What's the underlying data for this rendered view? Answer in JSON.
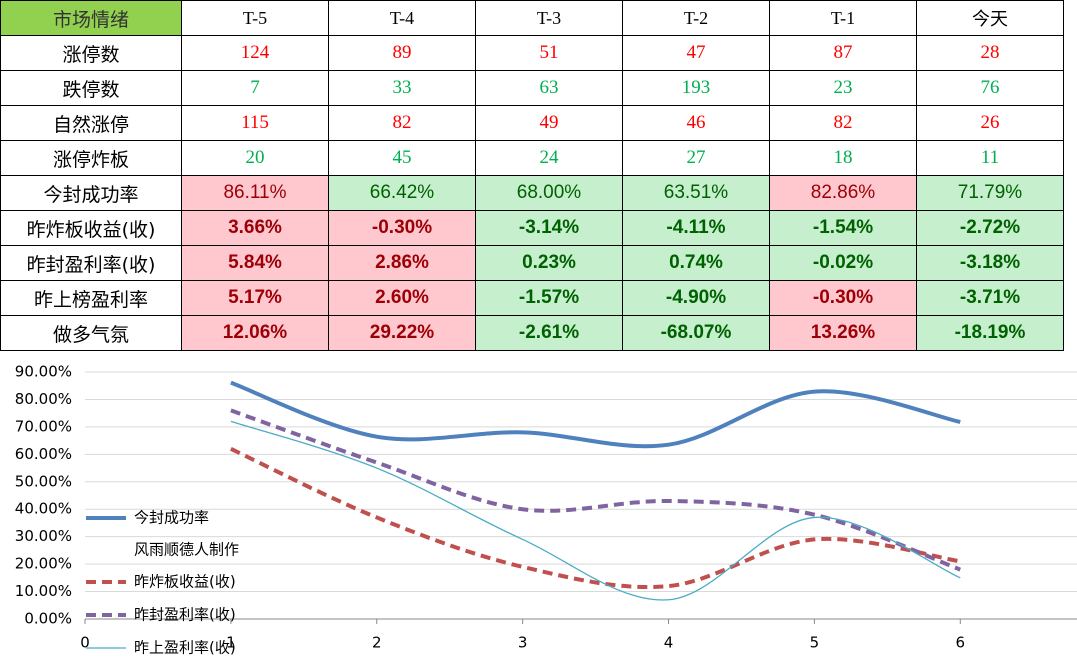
{
  "table": {
    "header": [
      "市场情绪",
      "T-5",
      "T-4",
      "T-3",
      "T-2",
      "T-1",
      "今天"
    ],
    "rows": [
      [
        "涨停数",
        "124",
        "89",
        "51",
        "47",
        "87",
        "28"
      ],
      [
        "跌停数",
        "7",
        "33",
        "63",
        "193",
        "23",
        "76"
      ],
      [
        "自然涨停",
        "115",
        "82",
        "49",
        "46",
        "82",
        "26"
      ],
      [
        "涨停炸板",
        "20",
        "45",
        "24",
        "27",
        "18",
        "11"
      ],
      [
        "今封成功率",
        "86.11%",
        "66.42%",
        "68.00%",
        "63.51%",
        "82.86%",
        "71.79%"
      ],
      [
        "昨炸板收益(收)",
        "3.66%",
        "-0.30%",
        "-3.14%",
        "-4.11%",
        "-1.54%",
        "-2.72%"
      ],
      [
        "昨封盈利率(收)",
        "5.84%",
        "2.86%",
        "0.23%",
        "0.74%",
        "-0.02%",
        "-3.18%"
      ],
      [
        "昨上榜盈利率",
        "5.17%",
        "2.60%",
        "-1.57%",
        "-4.90%",
        "-0.30%",
        "-3.71%"
      ],
      [
        "做多气氛",
        "12.06%",
        "29.22%",
        "-2.61%",
        "-68.07%",
        "13.26%",
        "-18.19%"
      ]
    ],
    "text_colors": [
      [
        "#ff0000",
        "#ff0000",
        "#ff0000",
        "#ff0000",
        "#ff0000",
        "#ff0000"
      ],
      [
        "#00b050",
        "#00b050",
        "#00b050",
        "#00b050",
        "#00b050",
        "#00b050"
      ],
      [
        "#ff0000",
        "#ff0000",
        "#ff0000",
        "#ff0000",
        "#ff0000",
        "#ff0000"
      ],
      [
        "#00b050",
        "#00b050",
        "#00b050",
        "#00b050",
        "#00b050",
        "#00b050"
      ],
      [
        "#9c0006",
        "#006100",
        "#006100",
        "#006100",
        "#9c0006",
        "#006100"
      ],
      [
        "#9c0006",
        "#9c0006",
        "#006100",
        "#006100",
        "#006100",
        "#006100"
      ],
      [
        "#9c0006",
        "#9c0006",
        "#006100",
        "#006100",
        "#006100",
        "#006100"
      ],
      [
        "#9c0006",
        "#9c0006",
        "#006100",
        "#006100",
        "#9c0006",
        "#006100"
      ],
      [
        "#9c0006",
        "#9c0006",
        "#006100",
        "#006100",
        "#9c0006",
        "#006100"
      ]
    ],
    "fills": [
      null,
      null,
      null,
      null,
      [
        "#ffc7ce",
        "#c6efce",
        "#c6efce",
        "#c6efce",
        "#ffc7ce",
        "#c6efce"
      ],
      [
        "#ffc7ce",
        "#ffc7ce",
        "#c6efce",
        "#c6efce",
        "#c6efce",
        "#c6efce"
      ],
      [
        "#ffc7ce",
        "#ffc7ce",
        "#c6efce",
        "#c6efce",
        "#c6efce",
        "#c6efce"
      ],
      [
        "#ffc7ce",
        "#ffc7ce",
        "#c6efce",
        "#c6efce",
        "#ffc7ce",
        "#c6efce"
      ],
      [
        "#ffc7ce",
        "#ffc7ce",
        "#c6efce",
        "#c6efce",
        "#ffc7ce",
        "#c6efce"
      ]
    ]
  },
  "chart_data": {
    "type": "line",
    "annotation": "风雨顺德人制作",
    "x": [
      1,
      2,
      3,
      4,
      5,
      6
    ],
    "xlim": [
      0,
      6.8
    ],
    "xticks": [
      0,
      1,
      2,
      3,
      4,
      5,
      6
    ],
    "ylim": [
      0,
      90
    ],
    "yticks": [
      {
        "value": 0,
        "label": "0.00%"
      },
      {
        "value": 10,
        "label": "10.00%"
      },
      {
        "value": 20,
        "label": "20.00%"
      },
      {
        "value": 30,
        "label": "30.00%"
      },
      {
        "value": 40,
        "label": "40.00%"
      },
      {
        "value": 50,
        "label": "50.00%"
      },
      {
        "value": 60,
        "label": "60.00%"
      },
      {
        "value": 70,
        "label": "70.00%"
      },
      {
        "value": 80,
        "label": "80.00%"
      },
      {
        "value": 90,
        "label": "90.00%"
      }
    ],
    "grid": true,
    "series": [
      {
        "name": "今封成功率",
        "color": "#4f81bd",
        "values": [
          86.11,
          66.42,
          68,
          63.51,
          82.86,
          71.79
        ]
      },
      {
        "name": "昨炸板收益(收)",
        "color": "#c0504d",
        "values": [
          62,
          37,
          19,
          12,
          29,
          21
        ]
      },
      {
        "name": "昨封盈利率(收)",
        "color": "#8064a2",
        "values": [
          76,
          57,
          40,
          43,
          38,
          18
        ]
      },
      {
        "name": "昨上盈利率(收)",
        "color": "#4bacc6",
        "values": [
          72,
          55,
          29,
          7,
          37,
          15
        ]
      }
    ]
  }
}
